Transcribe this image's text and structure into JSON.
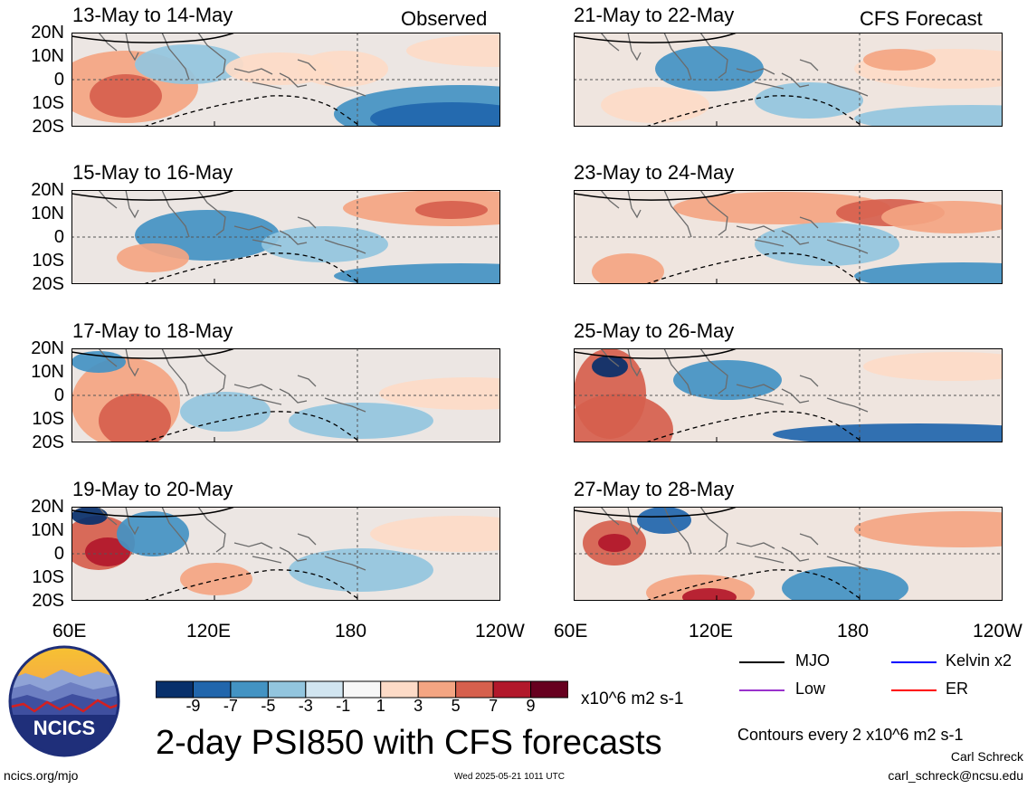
{
  "observed_label": "Observed",
  "forecast_label": "CFS Forecast",
  "panels": [
    {
      "title": "13-May to 14-May"
    },
    {
      "title": "15-May to 16-May"
    },
    {
      "title": "17-May to 18-May"
    },
    {
      "title": "19-May to 20-May"
    },
    {
      "title": "21-May to 22-May"
    },
    {
      "title": "23-May to 24-May"
    },
    {
      "title": "25-May to 26-May"
    },
    {
      "title": "27-May to 28-May"
    }
  ],
  "lat_labels": [
    "20N",
    "10N",
    "0",
    "10S",
    "20S"
  ],
  "lon_labels": [
    "60E",
    "120E",
    "180",
    "120W"
  ],
  "colorbar": {
    "labels": [
      "-9",
      "-7",
      "-5",
      "-3",
      "-1",
      "1",
      "3",
      "5",
      "7",
      "9"
    ],
    "colors": [
      "#08306b",
      "#2166ac",
      "#4393c3",
      "#92c5de",
      "#d1e5f0",
      "#f7f7f7",
      "#fddbc7",
      "#f4a582",
      "#d6604d",
      "#b2182b",
      "#67001f"
    ],
    "units": "x10^6 m2 s-1"
  },
  "legend": {
    "mjo": "MJO",
    "kelvin": "Kelvin x2",
    "low": "Low",
    "er": "ER",
    "colors": {
      "mjo": "#000000",
      "kelvin": "#0000ff",
      "low": "#9932cc",
      "er": "#ff0000"
    }
  },
  "logo_text": "NCICS",
  "main_title": "2-day PSI850 with CFS forecasts",
  "contours_note": "Contours every 2 x10^6 m2 s-1",
  "author": "Carl Schreck",
  "email": "carl_schreck@ncsu.edu",
  "site": "ncics.org/mjo",
  "timestamp": "Wed 2025-05-21 1011 UTC"
}
